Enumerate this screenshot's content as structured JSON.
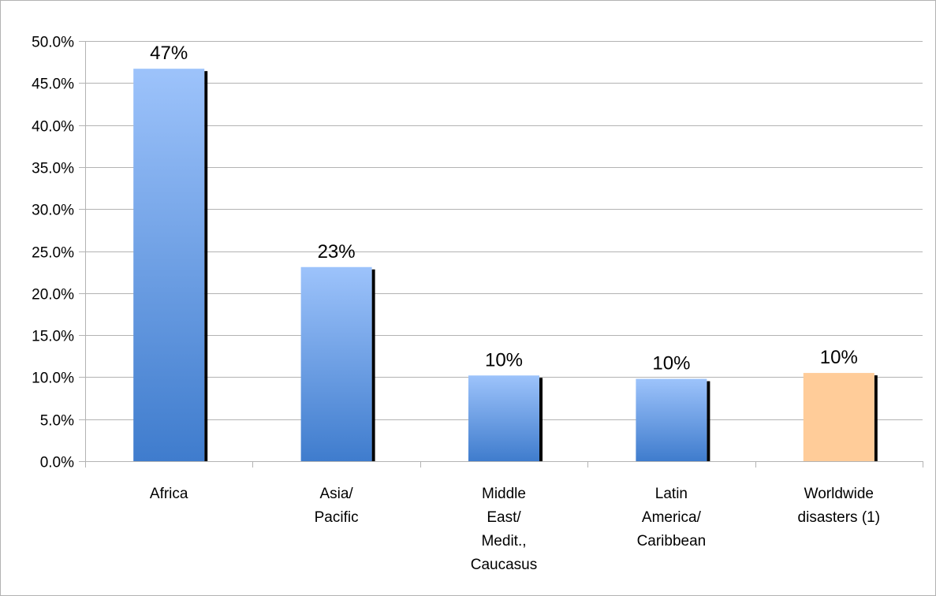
{
  "chart_data": {
    "type": "bar",
    "title": "",
    "xlabel": "",
    "ylabel": "",
    "ylim": [
      0,
      50
    ],
    "y_ticks": [
      0,
      5,
      10,
      15,
      20,
      25,
      30,
      35,
      40,
      45,
      50
    ],
    "y_tick_labels": [
      "0.0%",
      "5.0%",
      "10.0%",
      "15.0%",
      "20.0%",
      "25.0%",
      "30.0%",
      "35.0%",
      "40.0%",
      "45.0%",
      "50.0%"
    ],
    "grid": true,
    "legend": "none",
    "categories": [
      [
        "Africa"
      ],
      [
        "Asia/",
        "Pacific"
      ],
      [
        "Middle",
        "East/",
        "Medit.,",
        "Caucasus"
      ],
      [
        "Latin",
        "America/",
        "Caribbean"
      ],
      [
        "Worldwide",
        "disasters (1)"
      ]
    ],
    "values": [
      46.7,
      23.1,
      10.2,
      9.8,
      10.5
    ],
    "data_labels": [
      "47%",
      "23%",
      "10%",
      "10%",
      "10%"
    ],
    "bar_colors": [
      "#5a90dc",
      "#5a90dc",
      "#5a90dc",
      "#5a90dc",
      "#ffcc99"
    ],
    "colors": {
      "bar_top": "#9dc3fb",
      "bar_bottom": "#3f7ccd",
      "highlight": "#ffcc99",
      "shadow": "#000000",
      "grid": "#b3b3b3"
    }
  }
}
